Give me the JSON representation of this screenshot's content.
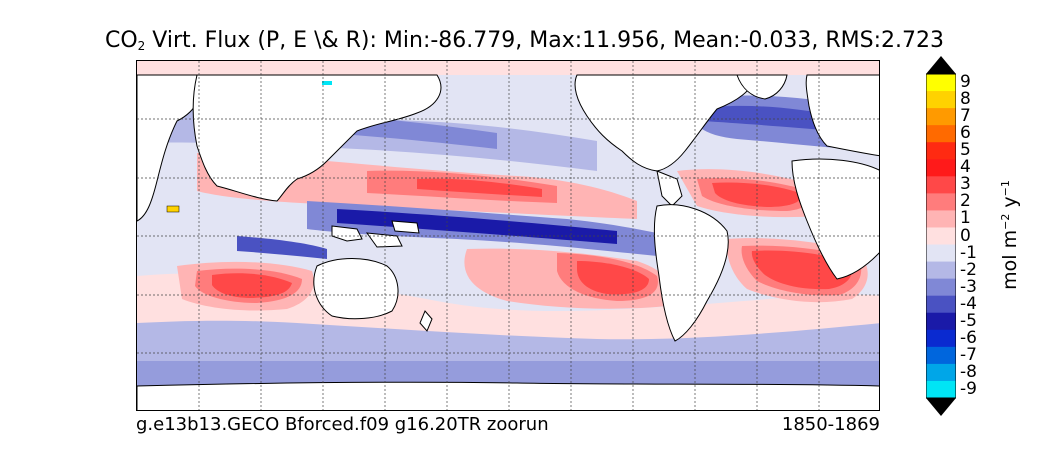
{
  "title": {
    "prefix": "CO",
    "subscript": "2",
    "rest": " Virt. Flux (P, E \\& R): Min:-86.779, Max:11.956, Mean:-0.033, RMS:2.723"
  },
  "footer": {
    "case_name": "g.e13b13.GECO Bforced.f09 g16.20TR zoorun",
    "years": "1850-1869"
  },
  "colorbar": {
    "label_text": "mol m",
    "label_exp1": "−2",
    "label_mid": " y",
    "label_exp2": "−1",
    "levels": [
      {
        "label": "9",
        "color": "#ffff00"
      },
      {
        "label": "8",
        "color": "#ffd200"
      },
      {
        "label": "7",
        "color": "#ff9a00"
      },
      {
        "label": "6",
        "color": "#ff6a00"
      },
      {
        "label": "5",
        "color": "#ff2a12"
      },
      {
        "label": "4",
        "color": "#ff1a1a"
      },
      {
        "label": "3",
        "color": "#ff4848"
      },
      {
        "label": "2",
        "color": "#ff7c7c"
      },
      {
        "label": "1",
        "color": "#ffb4b4"
      },
      {
        "label": "0",
        "color": "#ffe0e0"
      },
      {
        "label": "-1",
        "color": "#e2e4f4"
      },
      {
        "label": "-2",
        "color": "#b4b8e6"
      },
      {
        "label": "-3",
        "color": "#8088d6"
      },
      {
        "label": "-4",
        "color": "#4a52c2"
      },
      {
        "label": "-5",
        "color": "#1a1aa8"
      },
      {
        "label": "-6",
        "color": "#0a2ad0"
      },
      {
        "label": "-7",
        "color": "#0066dd"
      },
      {
        "label": "-8",
        "color": "#00a6e8"
      },
      {
        "label": "-9",
        "color": "#00e5f5"
      }
    ],
    "over_color": "#000000",
    "under_color": "#000000"
  },
  "map": {
    "projection": "cylindrical equidistant",
    "gridlines": "dashed",
    "land_color": "#ffffff",
    "ocean_background_level": "-1"
  }
}
